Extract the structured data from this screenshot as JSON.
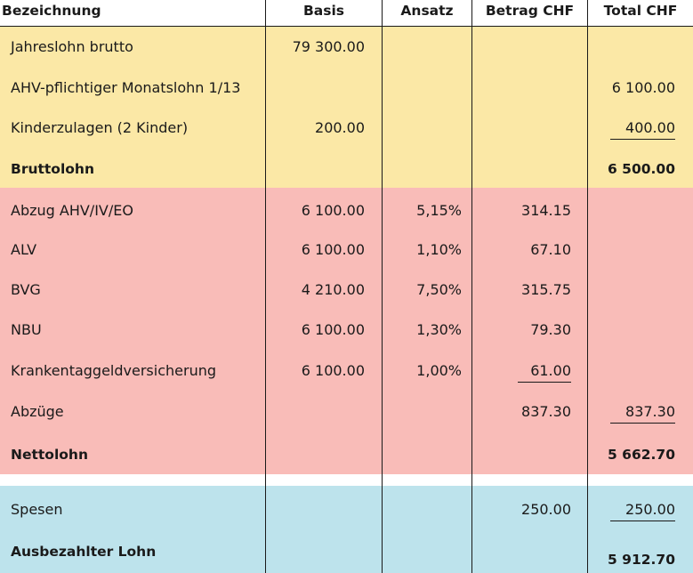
{
  "header": {
    "bezeichnung": "Bezeichnung",
    "basis": "Basis",
    "ansatz": "Ansatz",
    "betrag": "Betrag CHF",
    "total": "Total CHF"
  },
  "rows": [
    {
      "label": "Jahreslohn brutto",
      "basis": "79 300.00",
      "ansatz": "",
      "betrag": "",
      "total": ""
    },
    {
      "label": "AHV-pflichtiger Monatslohn 1/13",
      "basis": "",
      "ansatz": "",
      "betrag": "",
      "total": "6 100.00"
    },
    {
      "label": "Kinderzulagen (2 Kinder)",
      "basis": "200.00",
      "ansatz": "",
      "betrag": "",
      "total": "400.00"
    },
    {
      "label": "Bruttolohn",
      "basis": "",
      "ansatz": "",
      "betrag": "",
      "total": "6 500.00"
    },
    {
      "label": "Abzug AHV/IV/EO",
      "basis": "6 100.00",
      "ansatz": "5,15%",
      "betrag": "314.15",
      "total": ""
    },
    {
      "label": "ALV",
      "basis": "6 100.00",
      "ansatz": "1,10%",
      "betrag": "67.10",
      "total": ""
    },
    {
      "label": "BVG",
      "basis": "4 210.00",
      "ansatz": "7,50%",
      "betrag": "315.75",
      "total": ""
    },
    {
      "label": "NBU",
      "basis": "6 100.00",
      "ansatz": "1,30%",
      "betrag": "79.30",
      "total": ""
    },
    {
      "label": "Krankentaggeldversicherung",
      "basis": "6 100.00",
      "ansatz": "1,00%",
      "betrag": "61.00",
      "total": ""
    },
    {
      "label": "Abzüge",
      "basis": "",
      "ansatz": "",
      "betrag": "837.30",
      "total": "837.30"
    },
    {
      "label": "Nettolohn",
      "basis": "",
      "ansatz": "",
      "betrag": "",
      "total": "5 662.70"
    },
    {
      "label": "Spesen",
      "basis": "",
      "ansatz": "",
      "betrag": "250.00",
      "total": "250.00"
    },
    {
      "label": "Ausbezahlter Lohn",
      "basis": "",
      "ansatz": "",
      "betrag": "",
      "total": "5 912.70"
    }
  ]
}
